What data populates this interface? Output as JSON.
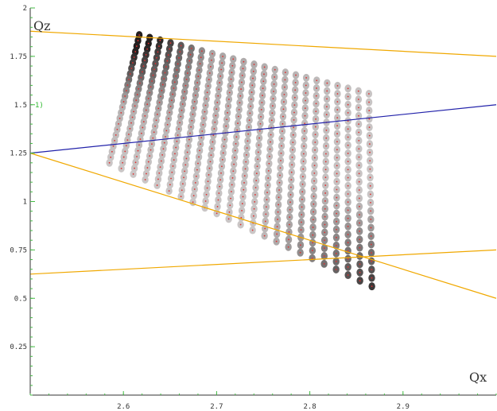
{
  "chart_data": {
    "type": "scatter",
    "title": "",
    "xlabel": "Qx",
    "ylabel": "Qz",
    "xlim": [
      2.5,
      3.0
    ],
    "ylim": [
      0,
      2
    ],
    "x_ticks": [
      2.6,
      2.7,
      2.8,
      2.9
    ],
    "x_tick_labels": [
      "2.6",
      "2.7",
      "2.8",
      "2.9"
    ],
    "y_ticks": [
      0.25,
      0.5,
      0.75,
      1,
      1.25,
      1.5,
      1.75,
      2
    ],
    "y_tick_labels": [
      "0.25",
      "0.5",
      "0.75",
      "1",
      "1.25",
      "1.5",
      "1.75",
      "2"
    ],
    "marker_label": "1)",
    "marker_y": 1.5,
    "scan_grid": {
      "columns": 23,
      "rows": 24,
      "first_column_top": [
        2.617,
        1.86
      ],
      "first_column_bottom": [
        2.585,
        1.2
      ],
      "column_step": [
        0.0112,
        -0.0138
      ],
      "bottom_edge_step": [
        0.0128,
        -0.029
      ],
      "point_color": "#e03030"
    },
    "lines": [
      {
        "x": [
          2.5,
          3.0
        ],
        "y": [
          1.88,
          1.75
        ],
        "color": "#f0a800"
      },
      {
        "x": [
          2.5,
          3.0
        ],
        "y": [
          1.25,
          1.5
        ],
        "color": "#2222aa"
      },
      {
        "x": [
          2.5,
          3.0
        ],
        "y": [
          1.25,
          0.5
        ],
        "color": "#f0a800"
      },
      {
        "x": [
          2.5,
          3.0
        ],
        "y": [
          0.625,
          0.75
        ],
        "color": "#f0a800"
      }
    ],
    "grid": false
  },
  "colors": {
    "axis": "#333333",
    "tick": "#44bb44",
    "background": "#ffffff"
  }
}
